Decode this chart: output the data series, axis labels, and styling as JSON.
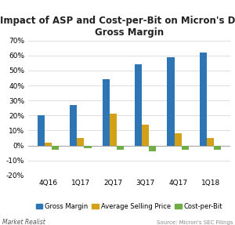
{
  "title": "Impact of ASP and Cost-per-Bit on Micron's DRAM\nGross Margin",
  "categories": [
    "4Q16",
    "1Q17",
    "2Q17",
    "3Q17",
    "4Q17",
    "1Q18"
  ],
  "gross_margin": [
    20,
    27,
    44,
    54,
    59,
    62
  ],
  "asp": [
    2,
    5,
    21,
    14,
    8,
    5
  ],
  "cost_per_bit": [
    -3,
    -2,
    -3,
    -4,
    -3,
    -3
  ],
  "bar_colors": {
    "gross_margin": "#2e75b6",
    "asp": "#d4a017",
    "cost_per_bit": "#70ad47"
  },
  "ylim": [
    -20,
    70
  ],
  "yticks": [
    -20,
    -10,
    0,
    10,
    20,
    30,
    40,
    50,
    60,
    70
  ],
  "legend_labels": [
    "Gross Margin",
    "Average Selling Price",
    "Cost-per-Bit"
  ],
  "footer_left": "Market Realist",
  "footer_right": "Source: Micron's SEC Filings",
  "bg_color": "#ffffff",
  "plot_bg_color": "#ffffff",
  "title_fontsize": 8.5,
  "tick_fontsize": 6.5,
  "legend_fontsize": 6.0,
  "bar_width": 0.22,
  "grid_color": "#d0d0d0"
}
